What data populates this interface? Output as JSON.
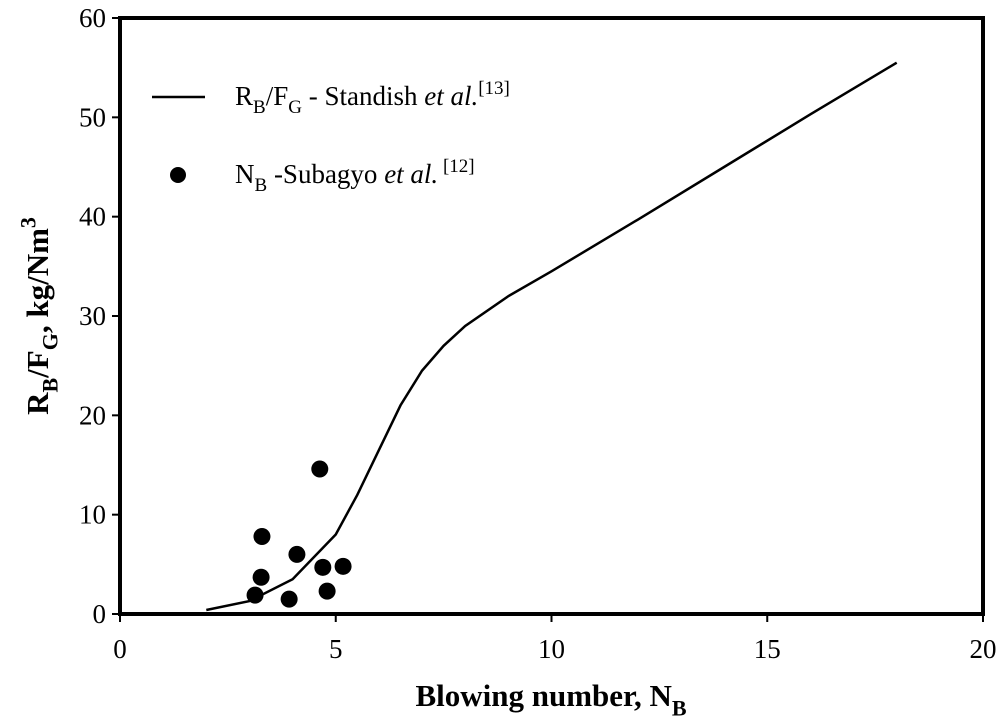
{
  "chart_data": {
    "type": "line+scatter",
    "x_label": [
      {
        "text": "Blowing number, N"
      },
      {
        "text": "B",
        "style": "sub"
      }
    ],
    "y_label": [
      {
        "text": "R"
      },
      {
        "text": "B",
        "style": "sub"
      },
      {
        "text": "/F"
      },
      {
        "text": "G",
        "style": "sub"
      },
      {
        "text": ", kg/Nm"
      },
      {
        "text": "3",
        "style": "sup"
      }
    ],
    "xlim": [
      0,
      20
    ],
    "xticks": [
      0,
      5,
      10,
      15,
      20
    ],
    "ylim": [
      0,
      60
    ],
    "yticks": [
      0,
      10,
      20,
      30,
      40,
      50,
      60
    ],
    "grid": false,
    "legend": "upper left",
    "series": [
      {
        "type": "line",
        "color": "#000000",
        "name": [
          {
            "text": "R"
          },
          {
            "text": "B",
            "style": "sub"
          },
          {
            "text": "/F"
          },
          {
            "text": "G",
            "style": "sub"
          },
          {
            "text": " - Standish "
          },
          {
            "text": "et al.",
            "style": "italic"
          },
          {
            "text": "[13]",
            "style": "sup"
          }
        ],
        "x": [
          2,
          3,
          4,
          5,
          5.5,
          6,
          6.5,
          7,
          7.5,
          8,
          9,
          10,
          12,
          14,
          16,
          18
        ],
        "values": [
          0.4,
          1.3,
          3.5,
          8,
          12,
          16.5,
          21,
          24.5,
          27,
          29,
          32,
          34.5,
          39.7,
          45,
          50.3,
          55.5
        ]
      },
      {
        "type": "scatter",
        "color": "#000000",
        "name": [
          {
            "text": "N"
          },
          {
            "text": "B",
            "style": "sub"
          },
          {
            "text": " -Subagyo "
          },
          {
            "text": "et al.",
            "style": "italic"
          },
          {
            "text": " [12]",
            "style": "sup"
          }
        ],
        "x": [
          3.13,
          3.27,
          3.29,
          3.92,
          4.1,
          4.63,
          4.7,
          4.8,
          5.17
        ],
        "values": [
          1.9,
          3.7,
          7.8,
          1.5,
          6.0,
          14.6,
          4.7,
          2.3,
          4.8
        ]
      }
    ]
  }
}
